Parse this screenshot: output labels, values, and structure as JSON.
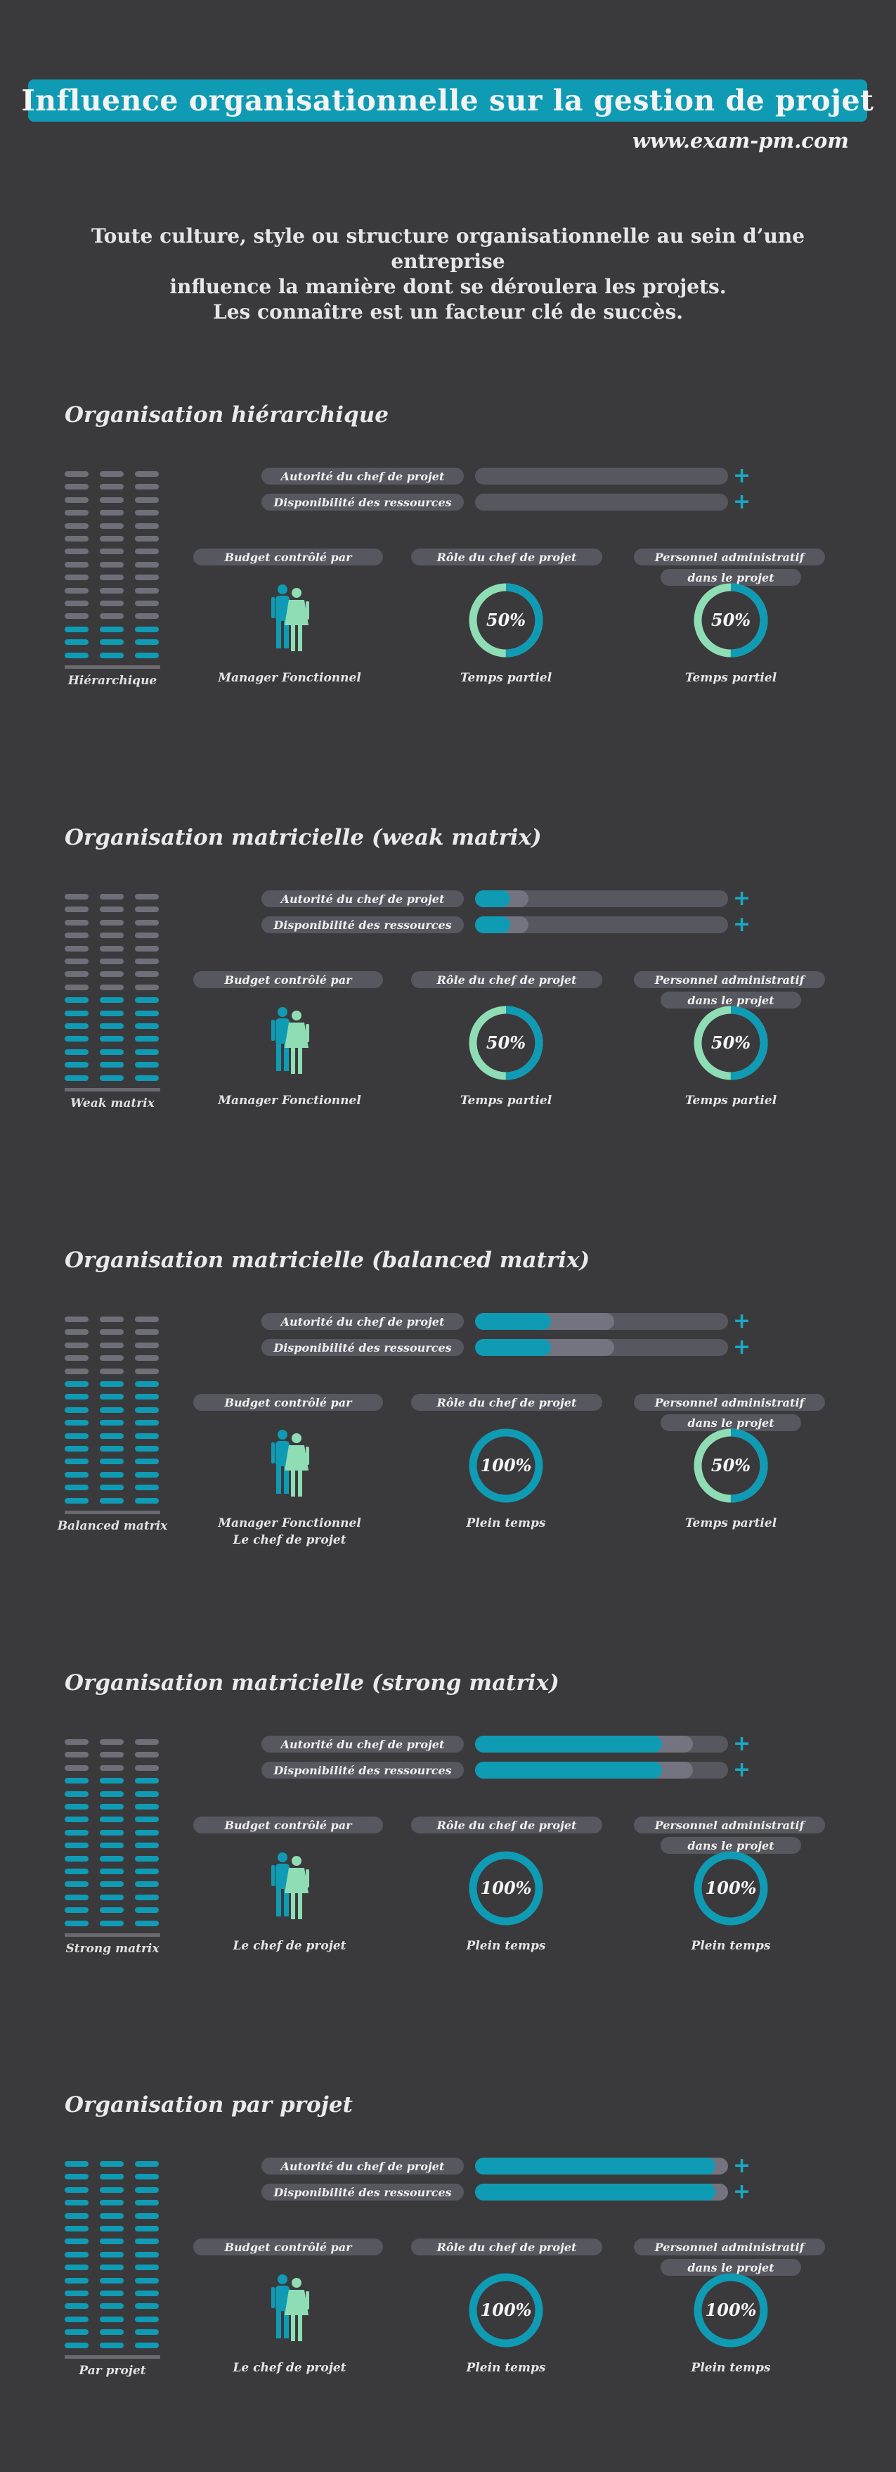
{
  "header": {
    "title": "Influence organisationnelle sur la gestion de projet",
    "url": "www.exam-pm.com"
  },
  "intro": {
    "line1": "Toute culture, style ou structure organisationnelle au sein d’une entreprise",
    "line2": "influence la manière dont se déroulera les projets.",
    "line3": "Les connaître est un facteur clé de succès."
  },
  "labels": {
    "authority": "Autorité du chef de projet",
    "resources": "Disponibilité des ressources",
    "plus": "+",
    "budget": "Budget contrôlé par",
    "role": "Rôle du chef de projet",
    "staff_line1": "Personnel administratif",
    "staff_line2": "dans le projet"
  },
  "colors": {
    "teal": "#0f9bb4",
    "mint": "#8fddb4",
    "gray": "#6f6f78",
    "background": "#3a3a3d"
  },
  "sections": [
    {
      "title": "Organisation hiérarchique",
      "stack_label": "Hiérarchique",
      "stack_total_rows": 15,
      "stack_teal_rows": 3,
      "authority_level": {
        "teal": 0,
        "gray": 0
      },
      "resources_level": {
        "teal": 0,
        "gray": 0
      },
      "budget_lines": [
        "Manager Fonctionnel"
      ],
      "role_percent": 50,
      "role_text": "50%",
      "role_caption": "Temps partiel",
      "staff_percent": 50,
      "staff_text": "50%",
      "staff_caption": "Temps partiel"
    },
    {
      "title": "Organisation matricielle (weak matrix)",
      "stack_label": "Weak matrix",
      "stack_total_rows": 15,
      "stack_teal_rows": 7,
      "authority_level": {
        "teal": 0.14,
        "gray": 0.21
      },
      "resources_level": {
        "teal": 0.14,
        "gray": 0.21
      },
      "budget_lines": [
        "Manager Fonctionnel"
      ],
      "role_percent": 50,
      "role_text": "50%",
      "role_caption": "Temps partiel",
      "staff_percent": 50,
      "staff_text": "50%",
      "staff_caption": "Temps partiel"
    },
    {
      "title": "Organisation matricielle (balanced matrix)",
      "stack_label": "Balanced matrix",
      "stack_total_rows": 15,
      "stack_teal_rows": 10,
      "authority_level": {
        "teal": 0.3,
        "gray": 0.55
      },
      "resources_level": {
        "teal": 0.3,
        "gray": 0.55
      },
      "budget_lines": [
        "Manager Fonctionnel",
        "Le chef de projet"
      ],
      "role_percent": 100,
      "role_text": "100%",
      "role_caption": "Plein temps",
      "staff_percent": 50,
      "staff_text": "50%",
      "staff_caption": "Temps partiel"
    },
    {
      "title": "Organisation matricielle (strong matrix)",
      "stack_label": "Strong matrix",
      "stack_total_rows": 15,
      "stack_teal_rows": 12,
      "authority_level": {
        "teal": 0.74,
        "gray": 0.86
      },
      "resources_level": {
        "teal": 0.74,
        "gray": 0.86
      },
      "budget_lines": [
        "Le chef de projet"
      ],
      "role_percent": 100,
      "role_text": "100%",
      "role_caption": "Plein temps",
      "staff_percent": 100,
      "staff_text": "100%",
      "staff_caption": "Plein temps"
    },
    {
      "title": "Organisation par projet",
      "stack_label": "Par projet",
      "stack_total_rows": 15,
      "stack_teal_rows": 15,
      "authority_level": {
        "teal": 0.95,
        "gray": 1
      },
      "resources_level": {
        "teal": 0.95,
        "gray": 1
      },
      "budget_lines": [
        "Le chef de projet"
      ],
      "role_percent": 100,
      "role_text": "100%",
      "role_caption": "Plein temps",
      "staff_percent": 100,
      "staff_text": "100%",
      "staff_caption": "Plein temps"
    }
  ]
}
